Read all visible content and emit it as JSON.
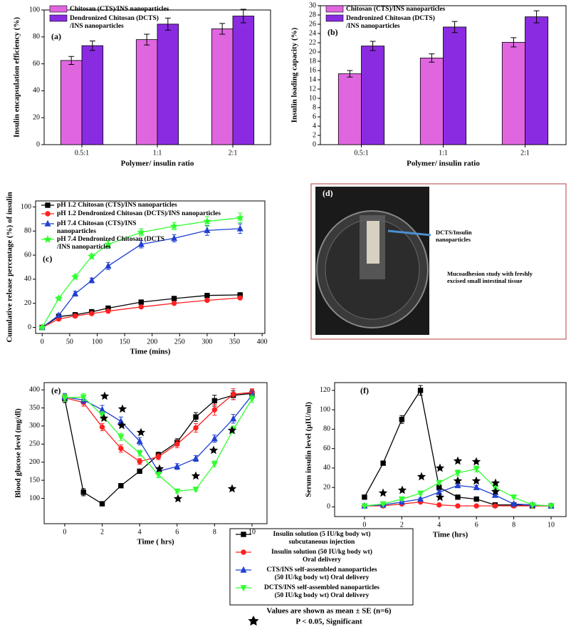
{
  "chart_data": [
    {
      "type": "bar",
      "panel_label": "(a)",
      "xlabel": "Polymer/ insulin ratio",
      "ylabel": "Insulin encapsulation efficiency (%)",
      "categories": [
        "0.5:1",
        "1:1",
        "2:1"
      ],
      "series": [
        {
          "name": "Chitosan (CTS)/INS nanoparticles",
          "color": "#e066e0",
          "values": [
            62.5,
            78,
            86
          ],
          "errors": [
            3,
            4,
            4
          ]
        },
        {
          "name": "Dendronized Chitosan (DCTS)\n/INS nanoparticles",
          "color": "#8a2be2",
          "values": [
            73.5,
            89.5,
            95.5
          ],
          "errors": [
            3.5,
            4.5,
            5
          ]
        }
      ],
      "ylim": [
        0,
        100
      ],
      "yticks": [
        0,
        20,
        40,
        60,
        80,
        100
      ]
    },
    {
      "type": "bar",
      "panel_label": "(b)",
      "xlabel": "Polymer/ insulin ratio",
      "ylabel": "Insulin loading capacity (%)",
      "categories": [
        "0.5:1",
        "1:1",
        "2:1"
      ],
      "series": [
        {
          "name": "Chitosan (CTS)/INS nanoparticles",
          "color": "#e066e0",
          "values": [
            15.3,
            18.7,
            22.1
          ],
          "errors": [
            0.7,
            0.9,
            1.0
          ]
        },
        {
          "name": "Dendronized Chitosan (DCTS)\n/INS nanoparticles",
          "color": "#8a2be2",
          "values": [
            21.3,
            25.4,
            27.6
          ],
          "errors": [
            1.0,
            1.2,
            1.3
          ]
        }
      ],
      "ylim": [
        0,
        30
      ],
      "yticks": [
        0,
        2,
        4,
        6,
        8,
        10,
        12,
        14,
        16,
        18,
        20,
        22,
        24,
        26,
        28,
        30
      ]
    },
    {
      "type": "line",
      "panel_label": "(c)",
      "xlabel": "Time (mins)",
      "ylabel": "Cumulative release percentage (%) of insulin",
      "x": [
        0,
        30,
        60,
        90,
        120,
        180,
        240,
        300,
        360
      ],
      "series": [
        {
          "name": "pH 1.2 Chitosan (CTS)/INS nanoparticles",
          "color": "#000000",
          "marker": "square",
          "values": [
            0,
            9,
            10.5,
            13,
            16,
            21,
            24,
            26.5,
            27
          ],
          "errors": [
            0.5,
            1,
            1,
            1,
            1,
            1,
            1,
            1,
            1
          ]
        },
        {
          "name": "pH 1.2 Dendronized Chitosan (DCTS)/INS nanoparticles",
          "color": "#ff2020",
          "marker": "circle",
          "values": [
            0,
            7,
            9.5,
            11.5,
            13.5,
            17,
            20,
            22.5,
            24.5
          ],
          "errors": [
            0.5,
            1,
            1,
            1,
            1,
            1,
            1,
            1,
            1
          ]
        },
        {
          "name": "pH 7.4 Chitosan (CTS)/INS\nnanoparticles",
          "color": "#2040d0",
          "marker": "triangle",
          "values": [
            0,
            10,
            28,
            39,
            51,
            69,
            74,
            80.5,
            82
          ],
          "errors": [
            0.5,
            1.5,
            2,
            2,
            3,
            3,
            3,
            4,
            4
          ]
        },
        {
          "name": "pH 7.4  Dendronized Chitosan (DCTS\n/INS nanoparticles",
          "color": "#30ff30",
          "marker": "star",
          "values": [
            0,
            24,
            42,
            59,
            69,
            79,
            84,
            88,
            91
          ],
          "errors": [
            0.5,
            1.5,
            2,
            2,
            3,
            3,
            3,
            4,
            4
          ]
        }
      ],
      "xlim": [
        -12,
        405
      ],
      "xticks": [
        0,
        50,
        100,
        150,
        200,
        250,
        300,
        350,
        400
      ],
      "ylim": [
        -5,
        105
      ],
      "yticks": [
        0,
        20,
        40,
        60,
        80,
        100
      ]
    },
    {
      "type": "line",
      "panel_label": "(e)",
      "xlabel": "Time ( hrs)",
      "ylabel": "Blood glucose level (mg/dl)",
      "x": [
        0,
        1,
        2,
        3,
        4,
        5,
        6,
        7,
        8,
        9,
        10
      ],
      "series": [
        {
          "name": "Insulin solution (5 IU/kg body wt)\nsubcutaneous injection",
          "color": "#000000",
          "marker": "square",
          "values": [
            375,
            117,
            85,
            135,
            175,
            220,
            255,
            325,
            370,
            385,
            390
          ],
          "errors": [
            10,
            10,
            5,
            5,
            5,
            8,
            10,
            12,
            15,
            12,
            10
          ]
        },
        {
          "name": "Insulin solution (50 IU/kg body wt)\nOral delivery",
          "color": "#ff2020",
          "marker": "circle",
          "values": [
            378,
            365,
            297,
            238,
            202,
            215,
            250,
            295,
            345,
            388,
            393
          ],
          "errors": [
            10,
            10,
            10,
            10,
            8,
            8,
            10,
            12,
            15,
            15,
            10
          ]
        },
        {
          "name": "CTS/INS self-assembled nanoparticles\n(50 IU/kg body wt) Oral delivery",
          "color": "#2040d0",
          "marker": "triangle",
          "values": [
            380,
            372,
            345,
            313,
            258,
            175,
            188,
            210,
            265,
            320,
            385
          ],
          "errors": [
            10,
            10,
            12,
            12,
            10,
            8,
            8,
            8,
            10,
            12,
            10
          ]
        },
        {
          "name": "DCTS/INS self-assembled nanoparticles\n(50 IU/kg body wt) Oral delivery",
          "color": "#30ff30",
          "marker": "triangle-down",
          "values": [
            378,
            380,
            330,
            270,
            225,
            165,
            120,
            125,
            195,
            290,
            375
          ],
          "errors": [
            10,
            10,
            10,
            10,
            8,
            8,
            5,
            5,
            8,
            10,
            10
          ]
        }
      ],
      "xlim": [
        -1.1,
        10.8
      ],
      "xticks": [
        0,
        2,
        4,
        6,
        8,
        10
      ],
      "ylim": [
        30,
        420
      ],
      "yticks": [
        100,
        150,
        200,
        250,
        300,
        350,
        400
      ]
    },
    {
      "type": "line",
      "panel_label": "(f)",
      "xlabel": "Time (hrs)",
      "ylabel": "Serum insulin level (µIU/ml)",
      "x": [
        0,
        1,
        2,
        3,
        4,
        5,
        6,
        7,
        8,
        9,
        10
      ],
      "series": [
        {
          "color": "#000000",
          "marker": "square",
          "values": [
            10,
            45,
            90,
            120,
            20,
            10,
            8,
            2,
            2,
            1,
            1
          ],
          "errors": [
            1,
            2,
            4,
            5,
            2,
            1,
            1,
            0.5,
            0.5,
            0.5,
            0.5
          ]
        },
        {
          "color": "#ff2020",
          "marker": "circle",
          "values": [
            1,
            1,
            3,
            5,
            2,
            1,
            1,
            1,
            1,
            1,
            1
          ],
          "errors": [
            0.5,
            0.5,
            0.5,
            0.5,
            0.5,
            0.5,
            0.5,
            0.5,
            0.5,
            0.5,
            0.5
          ]
        },
        {
          "color": "#2040d0",
          "marker": "triangle",
          "values": [
            1,
            2,
            5,
            8,
            15,
            22,
            20,
            12,
            3,
            2,
            1
          ],
          "errors": [
            0.5,
            0.5,
            1,
            1,
            2,
            2,
            2,
            2,
            1,
            0.5,
            0.5
          ]
        },
        {
          "color": "#30ff30",
          "marker": "triangle-down",
          "values": [
            1,
            3,
            8,
            14,
            25,
            35,
            39,
            20,
            10,
            2,
            1
          ],
          "errors": [
            0.5,
            0.5,
            1,
            1,
            2,
            3,
            3,
            2,
            1,
            0.5,
            0.5
          ]
        }
      ],
      "xlim": [
        -1.6,
        10.8
      ],
      "xticks": [
        0,
        2,
        4,
        6,
        8,
        10
      ],
      "ylim": [
        -10,
        128
      ],
      "yticks": [
        0,
        20,
        40,
        60,
        80,
        100,
        120
      ]
    }
  ],
  "photo": {
    "label": "(d)",
    "annotation": "DCTS/Insulin\nnanoparticles",
    "caption": "Mucoadhesion study with freshly\nexcised small intestinal tissue"
  },
  "notes": [
    "Values are shown as mean ± SE (n=6)",
    "P < 0.05, Significant"
  ]
}
